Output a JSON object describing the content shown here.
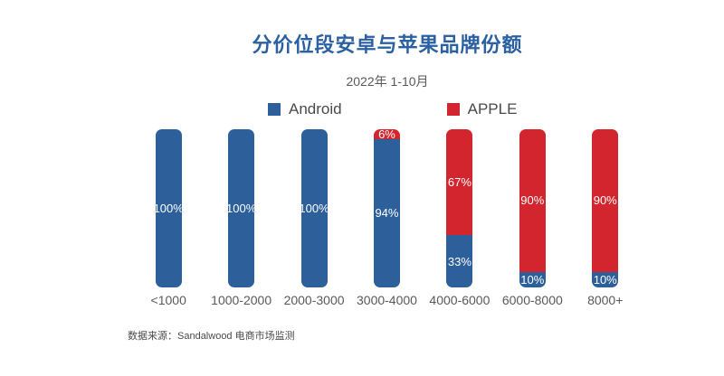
{
  "page": {
    "title": "分价位段安卓与苹果品牌份额",
    "subtitle": "2022年 1-10月",
    "source_note": "数据来源：Sandalwood 电商市场监测"
  },
  "colors": {
    "title_blue": "#2B61A3",
    "android_blue": "#2D5F9B",
    "apple_red": "#D2252D",
    "value_label_white": "#FFFFFF",
    "axis_text_gray": "#595959"
  },
  "legend": {
    "items": [
      {
        "label": "Android",
        "color": "#2D5F9B"
      },
      {
        "label": "APPLE",
        "color": "#D2252D"
      }
    ]
  },
  "chart_data": {
    "type": "bar",
    "stacked": true,
    "orientation": "vertical",
    "title": "分价位段安卓与苹果品牌份额",
    "subtitle": "2022年 1-10月",
    "unit": "%",
    "ylim": [
      0,
      100
    ],
    "grid": false,
    "legend_position": "top",
    "value_label_format": "{value}%",
    "categories": [
      "<1000",
      "1000-2000",
      "2000-3000",
      "3000-4000",
      "4000-6000",
      "6000-8000",
      "8000+"
    ],
    "series": [
      {
        "name": "Android",
        "color": "#2D5F9B",
        "values": [
          100,
          100,
          100,
          94,
          33,
          10,
          10
        ]
      },
      {
        "name": "APPLE",
        "color": "#D2252D",
        "values": [
          0,
          0,
          0,
          6,
          67,
          90,
          90
        ]
      }
    ]
  }
}
